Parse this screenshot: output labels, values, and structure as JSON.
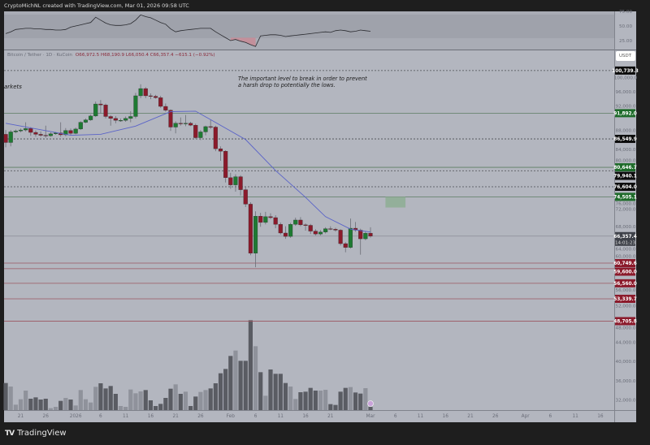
{
  "topbar": {
    "credit": "CryptoMichNL created with TradingView.com, Mar 01, 2026 09:58 UTC"
  },
  "legend": {
    "symbol": "Bitcoin / Tether · 1D · KuCoin",
    "ohlc": "O66,972.5 H68,190.9 L66,050.4 C66,357.4 −615.1 (−0.92%)"
  },
  "currency_button": "USDT",
  "annotation": {
    "line1": "The important level to break in order to prevent",
    "line2": "a harsh drop to potentially the lows."
  },
  "left_text": "arkets",
  "brand": "TradingView",
  "countdown": "14:01:23",
  "colors": {
    "up": "#1e7a32",
    "down": "#8b1a2b",
    "ma": "#5a63c8",
    "background": "#b3b6bf",
    "frame": "#1e1e1e",
    "support_tag": "#8b1a2b",
    "resistance_tag": "#1e6b2a",
    "neutral_tag": "#0b0b0b",
    "zone": "#8fae96"
  },
  "chart_data": {
    "type": "candlestick",
    "symbol": "BTC/USDT",
    "timeframe": "1D",
    "price_axis_ticks": [
      "100,000.0",
      "96,000.0",
      "92,000.0",
      "88,000.0",
      "84,000.0",
      "80,000.0",
      "76,000.0",
      "72,000.0",
      "68,000.0",
      "64,000.0",
      "60,000.0",
      "56,000.0",
      "52,000.0",
      "48,000.0",
      "44,000.0",
      "40,000.0",
      "36,000.0",
      "32,000.0"
    ],
    "rsi_axis_ticks": [
      "75.00",
      "50.00",
      "25.00"
    ],
    "time_axis_ticks": [
      {
        "date": "2025-12-21",
        "label": "21"
      },
      {
        "date": "2025-12-26",
        "label": "26"
      },
      {
        "date": "2026-01-01",
        "label": "2026"
      },
      {
        "date": "2026-01-06",
        "label": "6"
      },
      {
        "date": "2026-01-11",
        "label": "11"
      },
      {
        "date": "2026-01-16",
        "label": "16"
      },
      {
        "date": "2026-01-21",
        "label": "21"
      },
      {
        "date": "2026-01-26",
        "label": "26"
      },
      {
        "date": "2026-02-01",
        "label": "Feb"
      },
      {
        "date": "2026-02-06",
        "label": "6"
      },
      {
        "date": "2026-02-11",
        "label": "11"
      },
      {
        "date": "2026-02-16",
        "label": "16"
      },
      {
        "date": "2026-02-21",
        "label": "21"
      },
      {
        "date": "2026-03-01",
        "label": "Mar"
      },
      {
        "date": "2026-03-06",
        "label": "6"
      },
      {
        "date": "2026-03-11",
        "label": "11"
      },
      {
        "date": "2026-03-16",
        "label": "16"
      },
      {
        "date": "2026-03-21",
        "label": "21"
      },
      {
        "date": "2026-03-26",
        "label": "26"
      },
      {
        "date": "2026-04-01",
        "label": "Apr"
      },
      {
        "date": "2026-04-06",
        "label": "6"
      },
      {
        "date": "2026-04-11",
        "label": "11"
      },
      {
        "date": "2026-04-16",
        "label": "16"
      }
    ],
    "candles_columns": [
      "date",
      "open",
      "high",
      "low",
      "close"
    ],
    "candles": [
      [
        "2025-12-18",
        87500,
        88400,
        84800,
        85800
      ],
      [
        "2025-12-19",
        85800,
        88400,
        85000,
        88000
      ],
      [
        "2025-12-20",
        88000,
        88500,
        87700,
        88200
      ],
      [
        "2025-12-21",
        88200,
        88700,
        87900,
        88400
      ],
      [
        "2025-12-22",
        88400,
        90000,
        88100,
        88700
      ],
      [
        "2025-12-23",
        88700,
        89000,
        87200,
        87900
      ],
      [
        "2025-12-24",
        87900,
        88300,
        87000,
        87500
      ],
      [
        "2025-12-25",
        87500,
        88100,
        87000,
        87300
      ],
      [
        "2025-12-26",
        87300,
        89300,
        86800,
        87200
      ],
      [
        "2025-12-27",
        87200,
        87900,
        87000,
        87600
      ],
      [
        "2025-12-28",
        87600,
        88000,
        87400,
        87800
      ],
      [
        "2025-12-29",
        87800,
        90000,
        87000,
        87400
      ],
      [
        "2025-12-30",
        87400,
        88800,
        87100,
        88300
      ],
      [
        "2025-12-31",
        88300,
        88700,
        87300,
        87700
      ],
      [
        "2026-01-01",
        87700,
        88900,
        87500,
        88600
      ],
      [
        "2026-01-02",
        88600,
        90200,
        88400,
        90000
      ],
      [
        "2026-01-03",
        90000,
        90800,
        89800,
        90500
      ],
      [
        "2026-01-04",
        90500,
        91600,
        90300,
        91300
      ],
      [
        "2026-01-05",
        91300,
        94300,
        91100,
        93800
      ],
      [
        "2026-01-06",
        93800,
        94600,
        91800,
        93600
      ],
      [
        "2026-01-07",
        93600,
        93900,
        90800,
        91200
      ],
      [
        "2026-01-08",
        91200,
        91500,
        89300,
        90800
      ],
      [
        "2026-01-09",
        90800,
        91300,
        89800,
        90400
      ],
      [
        "2026-01-10",
        90400,
        90800,
        90100,
        90400
      ],
      [
        "2026-01-11",
        90400,
        91200,
        90100,
        90800
      ],
      [
        "2026-01-12",
        90800,
        92300,
        90000,
        91200
      ],
      [
        "2026-01-13",
        91200,
        96100,
        90800,
        95500
      ],
      [
        "2026-01-14",
        95500,
        97900,
        95000,
        97000
      ],
      [
        "2026-01-15",
        97000,
        97300,
        95000,
        95500
      ],
      [
        "2026-01-16",
        95500,
        96000,
        94800,
        95400
      ],
      [
        "2026-01-17",
        95400,
        95700,
        94900,
        95100
      ],
      [
        "2026-01-18",
        95100,
        95500,
        93000,
        93300
      ],
      [
        "2026-01-19",
        93300,
        93900,
        92200,
        92500
      ],
      [
        "2026-01-20",
        92500,
        92700,
        88200,
        89000
      ],
      [
        "2026-01-21",
        89000,
        90200,
        87700,
        89800
      ],
      [
        "2026-01-22",
        89800,
        91000,
        89300,
        89700
      ],
      [
        "2026-01-23",
        89700,
        91500,
        89200,
        89800
      ],
      [
        "2026-01-24",
        89800,
        90100,
        89200,
        89400
      ],
      [
        "2026-01-25",
        89400,
        89700,
        86600,
        86800
      ],
      [
        "2026-01-26",
        86800,
        88400,
        86300,
        88000
      ],
      [
        "2026-01-27",
        88000,
        89300,
        87300,
        89100
      ],
      [
        "2026-01-28",
        89100,
        90500,
        88600,
        89000
      ],
      [
        "2026-01-29",
        89000,
        89300,
        84000,
        84500
      ],
      [
        "2026-01-30",
        84500,
        85000,
        82000,
        84000
      ],
      [
        "2026-01-31",
        84000,
        84200,
        77500,
        78500
      ],
      [
        "2026-02-01",
        78500,
        79500,
        76200,
        77000
      ],
      [
        "2026-02-02",
        77000,
        79200,
        75600,
        78700
      ],
      [
        "2026-02-03",
        78700,
        79000,
        74800,
        76000
      ],
      [
        "2026-02-04",
        76000,
        76500,
        72400,
        73000
      ],
      [
        "2026-02-05",
        73000,
        73400,
        62400,
        62800
      ],
      [
        "2026-02-06",
        62800,
        71500,
        59900,
        70500
      ],
      [
        "2026-02-07",
        70500,
        71200,
        68300,
        69200
      ],
      [
        "2026-02-08",
        69200,
        71400,
        68800,
        70400
      ],
      [
        "2026-02-09",
        70400,
        71100,
        69900,
        70200
      ],
      [
        "2026-02-10",
        70200,
        70700,
        68000,
        68800
      ],
      [
        "2026-02-11",
        68800,
        69200,
        66700,
        67000
      ],
      [
        "2026-02-12",
        67000,
        68400,
        65800,
        66300
      ],
      [
        "2026-02-13",
        66300,
        69100,
        66000,
        68800
      ],
      [
        "2026-02-14",
        68800,
        70200,
        68500,
        69700
      ],
      [
        "2026-02-15",
        69700,
        70300,
        68400,
        68700
      ],
      [
        "2026-02-16",
        68700,
        69000,
        67500,
        68600
      ],
      [
        "2026-02-17",
        68600,
        68900,
        66800,
        67400
      ],
      [
        "2026-02-18",
        67400,
        67800,
        66500,
        66800
      ],
      [
        "2026-02-19",
        66800,
        67600,
        66500,
        67200
      ],
      [
        "2026-02-20",
        67200,
        68200,
        66900,
        67900
      ],
      [
        "2026-02-21",
        67900,
        68400,
        67600,
        67800
      ],
      [
        "2026-02-22",
        67800,
        68100,
        67300,
        67600
      ],
      [
        "2026-02-23",
        67600,
        67800,
        64400,
        64800
      ],
      [
        "2026-02-24",
        64800,
        65100,
        63000,
        64000
      ],
      [
        "2026-02-25",
        64000,
        70000,
        63800,
        68000
      ],
      [
        "2026-02-26",
        68000,
        69300,
        67300,
        67600
      ],
      [
        "2026-02-27",
        67600,
        67900,
        62500,
        65800
      ],
      [
        "2026-02-28",
        65800,
        67400,
        65500,
        66972.5
      ],
      [
        "2026-03-01",
        66972.5,
        68190.9,
        66050.4,
        66357.4
      ]
    ],
    "volume_relative": [
      100,
      87,
      20,
      40,
      72,
      42,
      47,
      39,
      42,
      7,
      12,
      34,
      45,
      39,
      17,
      74,
      40,
      28,
      86,
      99,
      80,
      89,
      60,
      15,
      12,
      76,
      62,
      69,
      74,
      36,
      15,
      23,
      45,
      79,
      95,
      60,
      68,
      15,
      50,
      67,
      74,
      80,
      99,
      136,
      152,
      200,
      220,
      182,
      182,
      332,
      236,
      140,
      53,
      150,
      134,
      134,
      100,
      87,
      41,
      66,
      68,
      82,
      72,
      72,
      75,
      22,
      19,
      68,
      82,
      85,
      65,
      61,
      81,
      12
    ],
    "moving_average": [
      [
        "2025-12-18",
        89800
      ],
      [
        "2025-12-31",
        87300
      ],
      [
        "2026-01-06",
        87500
      ],
      [
        "2026-01-13",
        89200
      ],
      [
        "2026-01-20",
        92200
      ],
      [
        "2026-01-25",
        92300
      ],
      [
        "2026-02-04",
        86400
      ],
      [
        "2026-02-10",
        80000
      ],
      [
        "2026-02-16",
        74400
      ],
      [
        "2026-02-20",
        70400
      ],
      [
        "2026-02-25",
        67800
      ],
      [
        "2026-03-01",
        67200
      ]
    ],
    "rsi": [
      37,
      40,
      44,
      45,
      46,
      46,
      45,
      45,
      44,
      44,
      43,
      43,
      44,
      48,
      50,
      52,
      54,
      56,
      65,
      60,
      55,
      52,
      51,
      51,
      52,
      54,
      60,
      69,
      66,
      64,
      60,
      56,
      53,
      45,
      40,
      42,
      43,
      44,
      45,
      46,
      46,
      46,
      40,
      35,
      30,
      25,
      27,
      24,
      22,
      18,
      15,
      33,
      34,
      35,
      35,
      34,
      32,
      33,
      34,
      35,
      36,
      37,
      38,
      39,
      40,
      39,
      42,
      43,
      42,
      40,
      41,
      43,
      42,
      41
    ],
    "levels": [
      {
        "price": 100739.3,
        "label": "100,739.3",
        "style": "dashed",
        "kind": "neutral"
      },
      {
        "price": 91892.0,
        "label": "91,892.0",
        "style": "solid",
        "kind": "resistance"
      },
      {
        "price": 86549.9,
        "label": "86,549.9",
        "style": "dashed",
        "kind": "neutral"
      },
      {
        "price": 80646.7,
        "label": "80,646.7",
        "style": "solid",
        "kind": "resistance"
      },
      {
        "price": 79940.1,
        "label": "79,940.1",
        "style": "dashed",
        "kind": "neutral"
      },
      {
        "price": 76604.0,
        "label": "76,604.0",
        "style": "dashed",
        "kind": "neutral"
      },
      {
        "price": 74505.1,
        "label": "74,505.1",
        "style": "solid",
        "kind": "resistance"
      },
      {
        "price": 60749.6,
        "label": "60,749.6",
        "style": "solid",
        "kind": "support"
      },
      {
        "price": 59600.0,
        "label": "59,600.0",
        "style": "solid",
        "kind": "support"
      },
      {
        "price": 56560.0,
        "label": "56,560.0",
        "style": "solid",
        "kind": "support"
      },
      {
        "price": 53339.7,
        "label": "53,339.7",
        "style": "solid",
        "kind": "support"
      },
      {
        "price": 48705.8,
        "label": "48,705.8",
        "style": "solid",
        "kind": "support"
      }
    ],
    "current_price": {
      "price": 66357.4,
      "label": "66,357.4"
    },
    "zone": {
      "from": "2026-03-04",
      "to": "2026-03-08",
      "low": 72300,
      "high": 74500
    }
  }
}
